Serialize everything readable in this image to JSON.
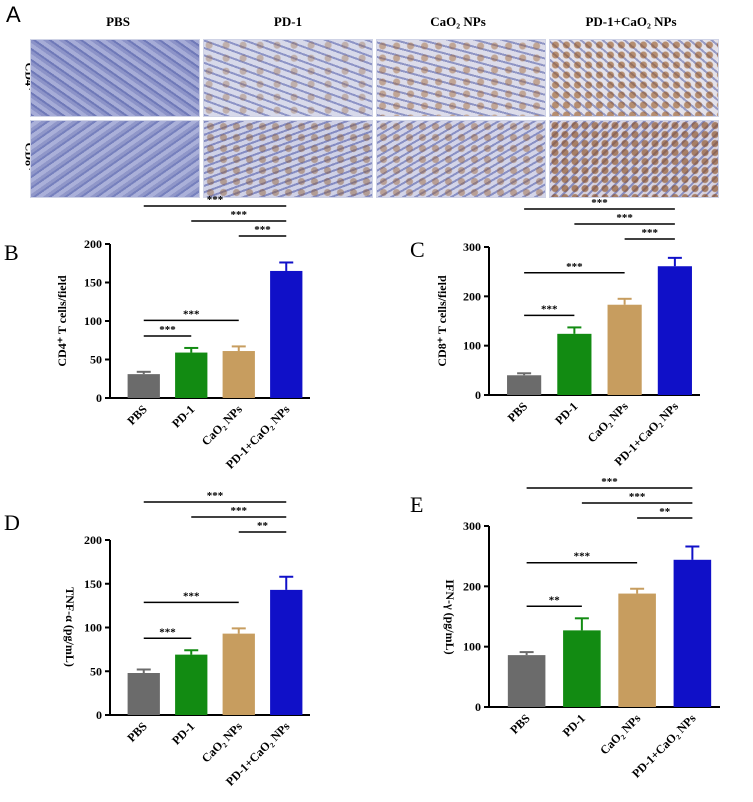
{
  "panel_a": {
    "letter": "A",
    "columns": [
      "PBS",
      "PD-1",
      "CaO₂ NPs",
      "PD-1+CaO₂ NPs"
    ],
    "rows": [
      "CD4⁺",
      "CD8⁺"
    ]
  },
  "colors": {
    "PBS": "#6b6b6b",
    "PD-1": "#128b12",
    "CaO2 NPs": "#c79d5f",
    "PD-1+CaO2 NPs": "#1010c8"
  },
  "chart_data": [
    {
      "panel": "B",
      "type": "bar",
      "categories": [
        "PBS",
        "PD-1",
        "CaO₂ NPs",
        "PD-1+CaO₂ NPs"
      ],
      "values": [
        31,
        59,
        61,
        165
      ],
      "errors": [
        3,
        6,
        6,
        11
      ],
      "ylabel": "CD4⁺ T cells/field",
      "ylim": [
        0,
        200
      ],
      "yticks": [
        0,
        50,
        100,
        150,
        200
      ],
      "comparisons": [
        {
          "from": 0,
          "to": 1,
          "label": "***"
        },
        {
          "from": 0,
          "to": 2,
          "label": "***"
        },
        {
          "from": 2,
          "to": 3,
          "label": "***"
        },
        {
          "from": 1,
          "to": 3,
          "label": "***"
        },
        {
          "from": 0,
          "to": 3,
          "label": "***"
        }
      ]
    },
    {
      "panel": "C",
      "type": "bar",
      "categories": [
        "PBS",
        "PD-1",
        "CaO₂ NPs",
        "PD-1+CaO₂ NPs"
      ],
      "values": [
        40,
        124,
        183,
        261
      ],
      "errors": [
        4,
        13,
        12,
        17
      ],
      "ylabel": "CD8⁺ T cells/field",
      "ylim": [
        0,
        300
      ],
      "yticks": [
        0,
        100,
        200,
        300
      ],
      "comparisons": [
        {
          "from": 0,
          "to": 1,
          "label": "***"
        },
        {
          "from": 0,
          "to": 2,
          "label": "***"
        },
        {
          "from": 2,
          "to": 3,
          "label": "***"
        },
        {
          "from": 1,
          "to": 3,
          "label": "***"
        },
        {
          "from": 0,
          "to": 3,
          "label": "***"
        }
      ]
    },
    {
      "panel": "D",
      "type": "bar",
      "categories": [
        "PBS",
        "PD-1",
        "CaO₂ NPs",
        "PD-1+CaO₂ NPs"
      ],
      "values": [
        48,
        69,
        93,
        143
      ],
      "errors": [
        4,
        5,
        6,
        15
      ],
      "ylabel": "TNF-α (pg/mL)",
      "ylim": [
        0,
        200
      ],
      "yticks": [
        0,
        50,
        100,
        150,
        200
      ],
      "comparisons": [
        {
          "from": 0,
          "to": 1,
          "label": "***"
        },
        {
          "from": 0,
          "to": 2,
          "label": "***"
        },
        {
          "from": 2,
          "to": 3,
          "label": "**"
        },
        {
          "from": 1,
          "to": 3,
          "label": "***"
        },
        {
          "from": 0,
          "to": 3,
          "label": "***"
        }
      ]
    },
    {
      "panel": "E",
      "type": "bar",
      "categories": [
        "PBS",
        "PD-1",
        "CaO₂ NPs",
        "PD-1+CaO₂ NPs"
      ],
      "values": [
        86,
        127,
        188,
        244
      ],
      "errors": [
        5,
        20,
        8,
        22
      ],
      "ylabel": "IFN-γ (pg/mL)",
      "ylim": [
        0,
        300
      ],
      "yticks": [
        0,
        100,
        200,
        300
      ],
      "comparisons": [
        {
          "from": 0,
          "to": 1,
          "label": "**"
        },
        {
          "from": 0,
          "to": 2,
          "label": "***"
        },
        {
          "from": 2,
          "to": 3,
          "label": "**"
        },
        {
          "from": 1,
          "to": 3,
          "label": "***"
        },
        {
          "from": 0,
          "to": 3,
          "label": "***"
        }
      ]
    }
  ]
}
